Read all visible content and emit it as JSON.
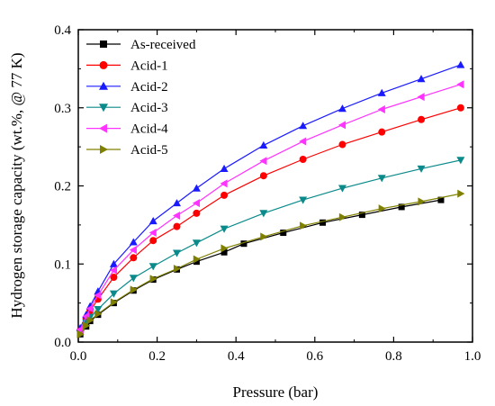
{
  "chart_data": {
    "type": "line",
    "xlabel": "Pressure (bar)",
    "ylabel": "Hydrogen storage capacity (wt.%, @ 77 K)",
    "xlim": [
      0,
      1.0
    ],
    "ylim": [
      0,
      0.4
    ],
    "xticks": [
      0.0,
      0.2,
      0.4,
      0.6,
      0.8,
      1.0
    ],
    "xtick_labels": [
      "0.0",
      "0.2",
      "0.4",
      "0.6",
      "0.8",
      "1.0"
    ],
    "yticks": [
      0.0,
      0.1,
      0.2,
      0.3,
      0.4
    ],
    "ytick_labels": [
      "0.0",
      "0.1",
      "0.2",
      "0.3",
      "0.4"
    ],
    "grid": false,
    "legend_position": "top-left",
    "series": [
      {
        "name": "As-received",
        "color": "#000000",
        "marker": "square",
        "x": [
          0.005,
          0.02,
          0.03,
          0.05,
          0.09,
          0.14,
          0.19,
          0.25,
          0.3,
          0.37,
          0.42,
          0.52,
          0.62,
          0.72,
          0.82,
          0.92
        ],
        "y": [
          0.01,
          0.02,
          0.027,
          0.035,
          0.05,
          0.066,
          0.08,
          0.093,
          0.103,
          0.115,
          0.126,
          0.14,
          0.153,
          0.163,
          0.173,
          0.182
        ]
      },
      {
        "name": "Acid-1",
        "color": "#ff0000",
        "marker": "circle",
        "x": [
          0.005,
          0.02,
          0.03,
          0.05,
          0.09,
          0.14,
          0.19,
          0.25,
          0.3,
          0.37,
          0.47,
          0.57,
          0.67,
          0.77,
          0.87,
          0.97
        ],
        "y": [
          0.015,
          0.03,
          0.04,
          0.055,
          0.083,
          0.108,
          0.13,
          0.148,
          0.165,
          0.188,
          0.213,
          0.234,
          0.253,
          0.269,
          0.285,
          0.3
        ]
      },
      {
        "name": "Acid-2",
        "color": "#1a1aff",
        "marker": "triangle-up",
        "x": [
          0.005,
          0.02,
          0.03,
          0.05,
          0.09,
          0.14,
          0.19,
          0.25,
          0.3,
          0.37,
          0.47,
          0.57,
          0.67,
          0.77,
          0.87,
          0.97
        ],
        "y": [
          0.018,
          0.035,
          0.046,
          0.065,
          0.1,
          0.128,
          0.155,
          0.178,
          0.197,
          0.222,
          0.252,
          0.277,
          0.299,
          0.319,
          0.337,
          0.355
        ]
      },
      {
        "name": "Acid-3",
        "color": "#0a8a8a",
        "marker": "triangle-down",
        "x": [
          0.005,
          0.02,
          0.03,
          0.05,
          0.09,
          0.14,
          0.19,
          0.25,
          0.3,
          0.37,
          0.47,
          0.57,
          0.67,
          0.77,
          0.87,
          0.97
        ],
        "y": [
          0.012,
          0.025,
          0.032,
          0.042,
          0.062,
          0.082,
          0.097,
          0.114,
          0.127,
          0.145,
          0.165,
          0.182,
          0.197,
          0.21,
          0.222,
          0.233
        ]
      },
      {
        "name": "Acid-4",
        "color": "#ff33ff",
        "marker": "triangle-left",
        "x": [
          0.005,
          0.02,
          0.03,
          0.05,
          0.09,
          0.14,
          0.19,
          0.25,
          0.3,
          0.37,
          0.47,
          0.57,
          0.67,
          0.77,
          0.87,
          0.97
        ],
        "y": [
          0.016,
          0.033,
          0.043,
          0.06,
          0.092,
          0.118,
          0.14,
          0.162,
          0.178,
          0.203,
          0.232,
          0.257,
          0.278,
          0.298,
          0.314,
          0.33
        ]
      },
      {
        "name": "Acid-5",
        "color": "#808000",
        "marker": "triangle-right",
        "x": [
          0.005,
          0.02,
          0.03,
          0.05,
          0.09,
          0.14,
          0.19,
          0.25,
          0.3,
          0.37,
          0.47,
          0.57,
          0.67,
          0.77,
          0.87,
          0.97
        ],
        "y": [
          0.01,
          0.021,
          0.028,
          0.036,
          0.051,
          0.067,
          0.081,
          0.094,
          0.106,
          0.12,
          0.135,
          0.149,
          0.16,
          0.171,
          0.18,
          0.19
        ]
      }
    ]
  }
}
